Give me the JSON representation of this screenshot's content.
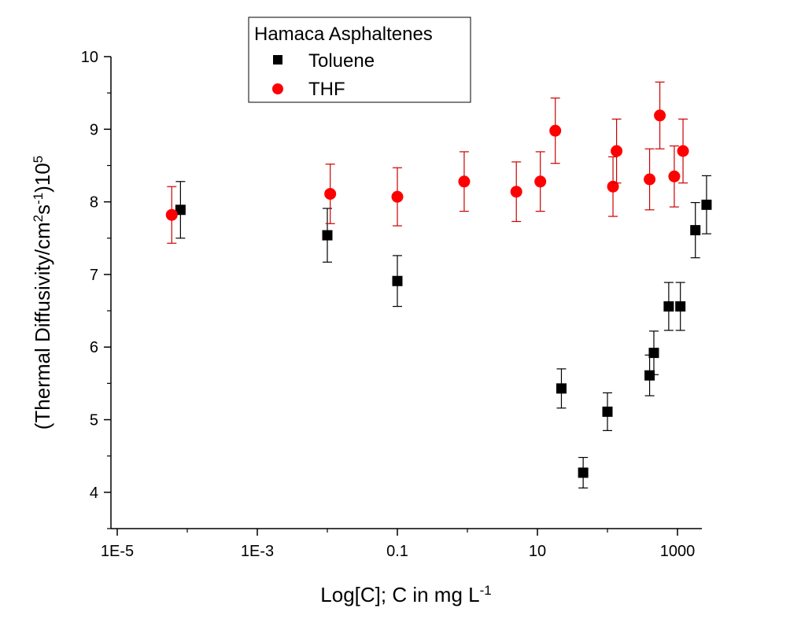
{
  "chart_data": {
    "type": "scatter",
    "title": "",
    "xlabel": "Log[C]; C in mg L",
    "xlabel_sup": "-1",
    "ylabel_parts": [
      "(Thermal Diffusivity/cm",
      "2",
      "s",
      "-1",
      ")10",
      "5"
    ],
    "x_scale": "log",
    "xlim": [
      1e-05,
      4000
    ],
    "ylim": [
      3.5,
      10
    ],
    "x_ticks": [
      {
        "value": 1e-05,
        "label": "1E-5"
      },
      {
        "value": 0.001,
        "label": "1E-3"
      },
      {
        "value": 0.1,
        "label": "0.1"
      },
      {
        "value": 10,
        "label": "10"
      },
      {
        "value": 1000,
        "label": "1000"
      }
    ],
    "y_ticks": [
      {
        "value": 4,
        "label": "4"
      },
      {
        "value": 5,
        "label": "5"
      },
      {
        "value": 6,
        "label": "6"
      },
      {
        "value": 7,
        "label": "7"
      },
      {
        "value": 8,
        "label": "8"
      },
      {
        "value": 9,
        "label": "9"
      },
      {
        "value": 10,
        "label": "10"
      }
    ],
    "legend": {
      "title": "Hamaca Asphaltenes",
      "position": "top-center"
    },
    "grid": false,
    "series": [
      {
        "name": "Toluene",
        "marker": "square",
        "color": "#000000",
        "error_color": "#000000",
        "points": [
          {
            "x": 8e-05,
            "y": 7.89,
            "err": 0.39
          },
          {
            "x": 0.01,
            "y": 7.54,
            "err": 0.37
          },
          {
            "x": 0.1,
            "y": 6.91,
            "err": 0.35
          },
          {
            "x": 22,
            "y": 5.43,
            "err": 0.27
          },
          {
            "x": 45,
            "y": 4.27,
            "err": 0.21
          },
          {
            "x": 100,
            "y": 5.11,
            "err": 0.26
          },
          {
            "x": 400,
            "y": 5.61,
            "err": 0.28
          },
          {
            "x": 460,
            "y": 5.92,
            "err": 0.3
          },
          {
            "x": 750,
            "y": 6.56,
            "err": 0.33
          },
          {
            "x": 1100,
            "y": 6.56,
            "err": 0.33
          },
          {
            "x": 1800,
            "y": 7.61,
            "err": 0.38
          },
          {
            "x": 2600,
            "y": 7.96,
            "err": 0.4
          }
        ]
      },
      {
        "name": "THF",
        "marker": "circle",
        "color": "#ff0000",
        "error_color": "#cc0000",
        "points": [
          {
            "x": 6e-05,
            "y": 7.82,
            "err": 0.39
          },
          {
            "x": 0.011,
            "y": 8.11,
            "err": 0.41
          },
          {
            "x": 0.1,
            "y": 8.07,
            "err": 0.4
          },
          {
            "x": 0.9,
            "y": 8.28,
            "err": 0.41
          },
          {
            "x": 5,
            "y": 8.14,
            "err": 0.41
          },
          {
            "x": 11,
            "y": 8.28,
            "err": 0.41
          },
          {
            "x": 18,
            "y": 8.98,
            "err": 0.45
          },
          {
            "x": 120,
            "y": 8.21,
            "err": 0.41
          },
          {
            "x": 135,
            "y": 8.7,
            "err": 0.44
          },
          {
            "x": 400,
            "y": 8.31,
            "err": 0.42
          },
          {
            "x": 560,
            "y": 9.19,
            "err": 0.46
          },
          {
            "x": 900,
            "y": 8.35,
            "err": 0.42
          },
          {
            "x": 1200,
            "y": 8.7,
            "err": 0.44
          }
        ]
      }
    ]
  }
}
